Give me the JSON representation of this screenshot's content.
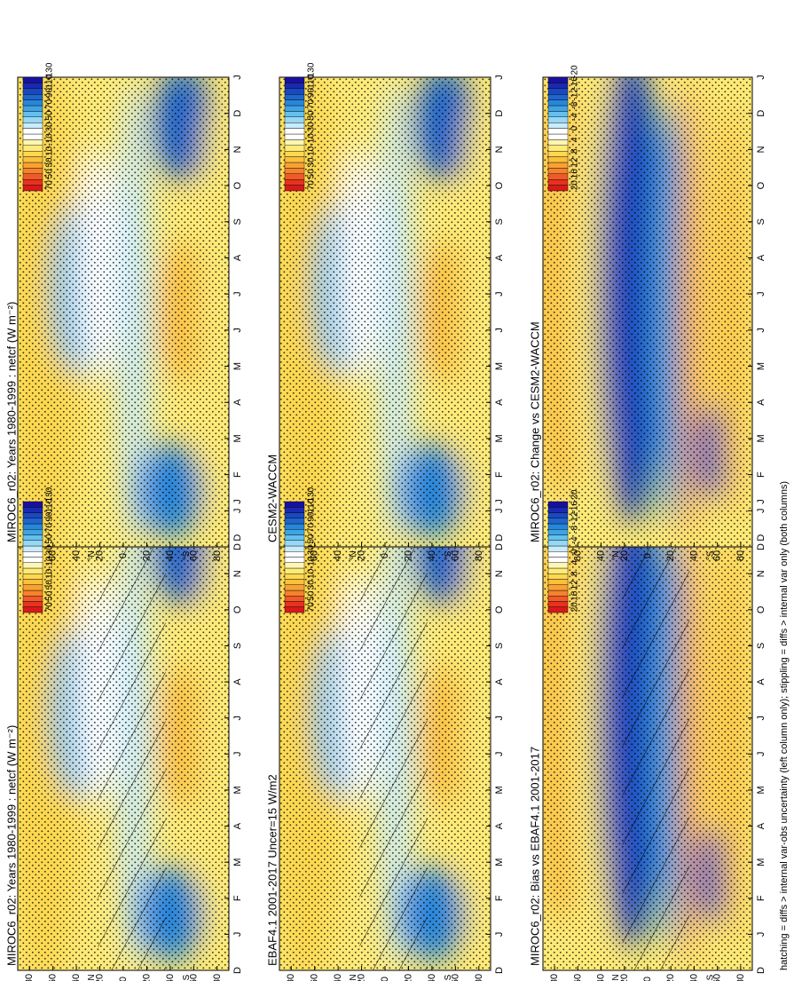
{
  "caption": "hatching = diffs > internal var-obs uncertainty (left column only); stippling = diffs > internal var only (both columns)",
  "months": [
    "D",
    "J",
    "F",
    "M",
    "A",
    "M",
    "J",
    "J",
    "A",
    "S",
    "O",
    "N",
    "D",
    "J"
  ],
  "lat_ticks": [
    "80",
    "60",
    "40",
    "20",
    "0",
    "20",
    "40",
    "60",
    "80"
  ],
  "hemisphere_labels": {
    "north": "°N",
    "south": "°S"
  },
  "colors": {
    "abs_scale": [
      "#d7191c",
      "#e8321e",
      "#f05a28",
      "#f5822e",
      "#f9a232",
      "#fbbf3c",
      "#fdd850",
      "#feeb78",
      "#fff6b0",
      "#ffffff",
      "#ffffff",
      "#c8ecfb",
      "#96d8f5",
      "#64c0ee",
      "#3ea4e6",
      "#2886da",
      "#1e66cc",
      "#1a48c0",
      "#1a2ab0",
      "#1a10a0"
    ],
    "diff_scale": [
      "#d7191c",
      "#e8321e",
      "#f05a28",
      "#f5822e",
      "#f9a232",
      "#fbbf3c",
      "#fdd850",
      "#feeb78",
      "#fff6b0",
      "#ffffff",
      "#ffffff",
      "#c8ecfb",
      "#96d8f5",
      "#64c0ee",
      "#3ea4e6",
      "#2886da",
      "#1e66cc",
      "#1a48c0",
      "#1a2ab0",
      "#1a10a0"
    ]
  },
  "colorbar_abs_labels": [
    "70",
    "50",
    "30",
    "10",
    "-10",
    "-30",
    "-50",
    "-70",
    "-90",
    "-110",
    "-130"
  ],
  "colorbar_diff_labels": [
    "20",
    "16",
    "12",
    "8",
    "4",
    "0",
    "-4",
    "-8",
    "-12",
    "-16",
    "-20"
  ],
  "chart_data": [
    {
      "type": "heatmap",
      "title": "MIROC6_r02: Years 1980-1999 : netcf (W m⁻²)",
      "x": "month",
      "y": "latitude",
      "colorbar": "abs",
      "hatching": true,
      "stippling": true
    },
    {
      "type": "heatmap",
      "title": "MIROC6_r02: Years 1980-1999 : netcf (W m⁻²)",
      "x": "month",
      "y": "latitude",
      "colorbar": "abs",
      "hatching": false,
      "stippling": true
    },
    {
      "type": "heatmap",
      "title": "EBAF4.1 2001-2017 Uncer=15 W/m2",
      "x": "month",
      "y": "latitude",
      "colorbar": "abs",
      "hatching": true,
      "stippling": true
    },
    {
      "type": "heatmap",
      "title": "CESM2-WACCM",
      "x": "month",
      "y": "latitude",
      "colorbar": "abs",
      "hatching": false,
      "stippling": true
    },
    {
      "type": "heatmap",
      "title": "MIROC6_r02: Bias vs EBAF4.1 2001-2017",
      "x": "month",
      "y": "latitude",
      "colorbar": "diff",
      "hatching": true,
      "stippling": true
    },
    {
      "type": "heatmap",
      "title": "MIROC6_r02: Change vs CESM2-WACCM",
      "x": "month",
      "y": "latitude",
      "colorbar": "diff",
      "hatching": false,
      "stippling": true
    }
  ]
}
